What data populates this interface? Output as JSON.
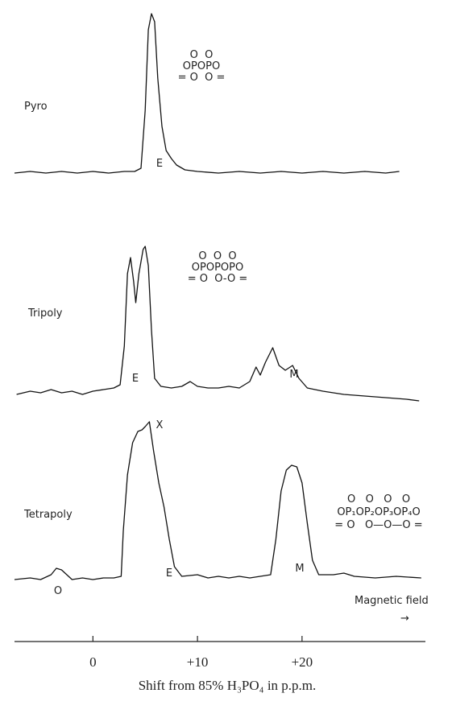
{
  "chart_data": {
    "type": "line",
    "x_label": "Shift from 85% H₃PO₄ in p.p.m.",
    "xlim": [
      -7.5,
      31.8
    ],
    "xticks": [
      0,
      {
        "value": 10,
        "label": "+10"
      },
      {
        "value": 20,
        "label": "+20"
      }
    ],
    "series": [
      {
        "name": "Pyro",
        "color": "#111111",
        "x": [
          -7.5,
          -6,
          -4.5,
          -3,
          -1.5,
          0,
          1.5,
          3,
          4,
          4.6,
          5,
          5.3,
          5.6,
          5.9,
          6.2,
          6.6,
          7,
          7.5,
          8,
          8.8,
          10,
          12,
          14,
          16,
          18,
          20,
          22,
          24,
          26,
          28,
          29.3
        ],
        "values": [
          1,
          2,
          1,
          2,
          1,
          2,
          1,
          2,
          2,
          4,
          40,
          90,
          100,
          95,
          60,
          30,
          15,
          10,
          6,
          3,
          2,
          1,
          2,
          1,
          2,
          1,
          2,
          1,
          2,
          1,
          2
        ]
      },
      {
        "name": "Tripoly",
        "color": "#111111",
        "x": [
          -7.3,
          -6,
          -5,
          -4,
          -3,
          -2,
          -1,
          0,
          1,
          2,
          2.6,
          3.0,
          3.3,
          3.6,
          3.9,
          4.1,
          4.4,
          4.8,
          5.0,
          5.3,
          5.6,
          5.9,
          6.5,
          7.5,
          8.5,
          9.3,
          10,
          11,
          12,
          13,
          14,
          15,
          15.6,
          16.0,
          16.5,
          17.2,
          17.8,
          18.4,
          19.1,
          19.7,
          20.5,
          22,
          24,
          26,
          28,
          30,
          31.2
        ],
        "values": [
          0,
          2,
          1,
          3,
          1,
          2,
          0,
          2,
          3,
          4,
          6,
          30,
          75,
          85,
          70,
          57,
          75,
          90,
          92,
          80,
          40,
          10,
          5,
          4,
          5,
          8,
          5,
          4,
          4,
          5,
          4,
          8,
          17,
          12,
          20,
          29,
          18,
          15,
          18,
          10,
          4,
          2,
          0,
          -1,
          -2,
          -3,
          -4
        ]
      },
      {
        "name": "Tetrapoly",
        "color": "#111111",
        "x": [
          -7.5,
          -6,
          -5,
          -4,
          -3.5,
          -3,
          -2.5,
          -2,
          -1,
          0,
          1,
          2,
          2.7,
          2.9,
          3.3,
          3.8,
          4.3,
          4.7,
          5.0,
          5.4,
          5.8,
          6.3,
          6.8,
          7.3,
          7.8,
          8.5,
          10,
          11,
          12,
          13,
          14,
          15,
          16,
          17,
          17.5,
          18.0,
          18.5,
          19.0,
          19.5,
          20.0,
          20.5,
          21.0,
          21.6,
          23,
          24,
          25,
          27,
          29,
          31.4
        ],
        "values": [
          0,
          1,
          0,
          3,
          7,
          6,
          3,
          0,
          1,
          0,
          1,
          1,
          2,
          30,
          65,
          85,
          92,
          93,
          95,
          98,
          80,
          60,
          45,
          25,
          8,
          2,
          3,
          1,
          2,
          1,
          2,
          1,
          2,
          3,
          25,
          55,
          68,
          71,
          70,
          60,
          35,
          12,
          3,
          3,
          4,
          2,
          1,
          2,
          1
        ]
      }
    ],
    "structures": [
      [
        "O  O",
        "OPOPO",
        "= O  O ="
      ],
      [
        "O  O  O",
        "OPOPOPO",
        "= O  O-O ="
      ],
      [
        "O   O   O   O",
        "OP₁OP₂OP₃OP₄O",
        "= O   O—O—O ="
      ]
    ],
    "peak_labels": [
      "E",
      "E",
      "M",
      "X",
      "E",
      "M",
      "O"
    ],
    "field_label": "Magnetic field",
    "field_arrow": "→"
  }
}
